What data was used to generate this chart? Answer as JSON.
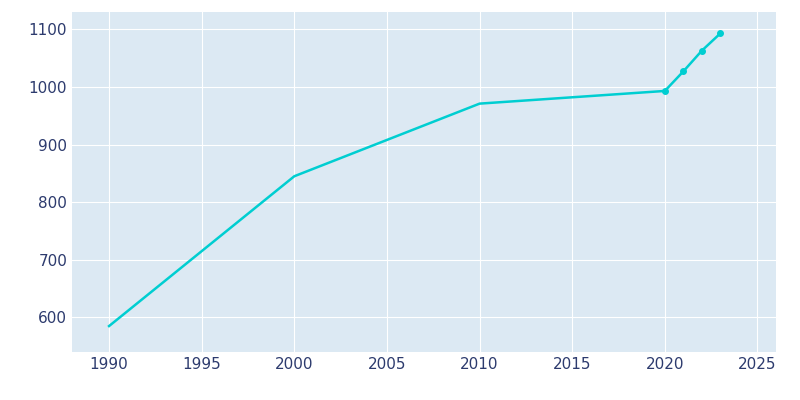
{
  "years": [
    1990,
    2000,
    2010,
    2020,
    2021,
    2022,
    2023
  ],
  "population": [
    585,
    845,
    971,
    993,
    1027,
    1063,
    1093
  ],
  "line_color": "#00CED1",
  "marker_years": [
    2020,
    2021,
    2022,
    2023
  ],
  "axes_bg_color": "#dce9f3",
  "fig_bg_color": "#ffffff",
  "grid_color": "#ffffff",
  "tick_color": "#2d3b6e",
  "xlim": [
    1988,
    2026
  ],
  "ylim": [
    540,
    1130
  ],
  "xticks": [
    1990,
    1995,
    2000,
    2005,
    2010,
    2015,
    2020,
    2025
  ],
  "yticks": [
    600,
    700,
    800,
    900,
    1000,
    1100
  ]
}
